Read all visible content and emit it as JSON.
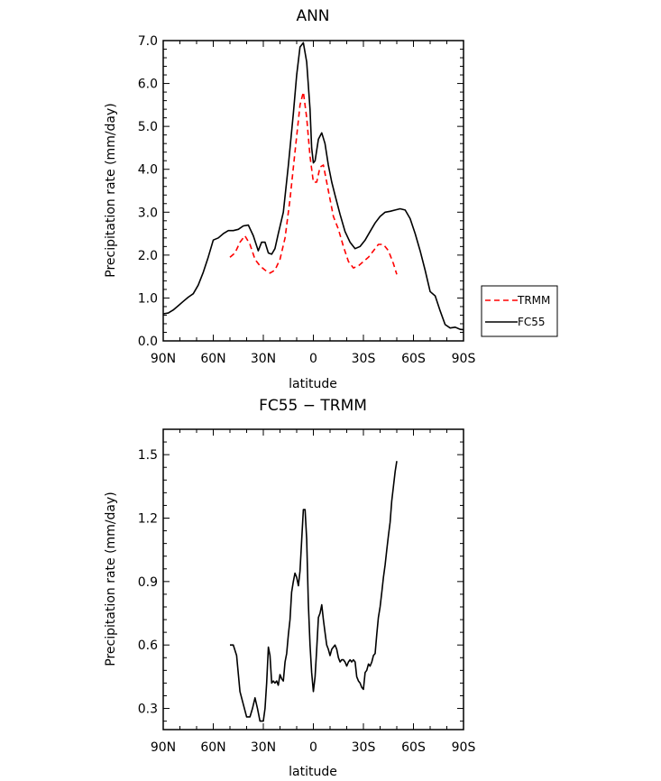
{
  "chart_data": [
    {
      "type": "line",
      "title": "ANN",
      "xlabel": "latitude",
      "ylabel": "Precipitation rate (mm/day)",
      "xlim": [
        90,
        -90
      ],
      "ylim": [
        0,
        7
      ],
      "xticks": [
        90,
        60,
        30,
        0,
        -30,
        -60,
        -90
      ],
      "xtick_labels": [
        "90N",
        "60N",
        "30N",
        "0",
        "30S",
        "60S",
        "90S"
      ],
      "yticks": [
        0,
        1,
        2,
        3,
        4,
        5,
        6,
        7
      ],
      "ytick_labels": [
        "0.0",
        "1.0",
        "2.0",
        "3.0",
        "4.0",
        "5.0",
        "6.0",
        "7.0"
      ],
      "legend": "right",
      "series": [
        {
          "name": "TRMM",
          "color": "#ff0000",
          "style": "dashed",
          "x": [
            50,
            47,
            44,
            41,
            38,
            35,
            32,
            29,
            26,
            23,
            20,
            17,
            14,
            11,
            8,
            6,
            4,
            2,
            0,
            -2,
            -4,
            -6,
            -8,
            -10,
            -12,
            -15,
            -18,
            -21,
            -24,
            -27,
            -30,
            -33,
            -36,
            -39,
            -42,
            -45,
            -48,
            -50
          ],
          "y": [
            1.95,
            2.05,
            2.3,
            2.45,
            2.25,
            1.9,
            1.75,
            1.65,
            1.58,
            1.65,
            1.9,
            2.4,
            3.3,
            4.4,
            5.5,
            5.8,
            5.2,
            4.3,
            3.7,
            3.7,
            4.05,
            4.1,
            3.7,
            3.3,
            2.9,
            2.6,
            2.2,
            1.85,
            1.7,
            1.75,
            1.85,
            1.95,
            2.1,
            2.25,
            2.25,
            2.1,
            1.8,
            1.55
          ]
        },
        {
          "name": "FC55",
          "color": "#000000",
          "style": "solid",
          "x": [
            90,
            87,
            84,
            81,
            78,
            75,
            72,
            69,
            66,
            63,
            60,
            57,
            54,
            51,
            48,
            45,
            42,
            39,
            36,
            33,
            31,
            29,
            27,
            25,
            23,
            21,
            18,
            15,
            12,
            10,
            8,
            6,
            4,
            2,
            1,
            0,
            -1,
            -3,
            -5,
            -7,
            -9,
            -11,
            -13,
            -16,
            -19,
            -22,
            -25,
            -28,
            -31,
            -34,
            -37,
            -40,
            -43,
            -46,
            -49,
            -52,
            -55,
            -58,
            -61,
            -64,
            -67,
            -70,
            -73,
            -76,
            -79,
            -82,
            -85,
            -88,
            -90
          ],
          "y": [
            0.63,
            0.65,
            0.72,
            0.82,
            0.92,
            1.02,
            1.1,
            1.3,
            1.6,
            1.95,
            2.35,
            2.4,
            2.5,
            2.57,
            2.57,
            2.6,
            2.68,
            2.7,
            2.45,
            2.1,
            2.3,
            2.3,
            2.05,
            2.02,
            2.15,
            2.5,
            3.0,
            4.1,
            5.3,
            6.2,
            6.85,
            6.95,
            6.5,
            5.4,
            4.5,
            4.15,
            4.2,
            4.7,
            4.85,
            4.6,
            4.1,
            3.7,
            3.4,
            2.95,
            2.55,
            2.3,
            2.15,
            2.2,
            2.35,
            2.55,
            2.75,
            2.9,
            3.0,
            3.02,
            3.05,
            3.08,
            3.05,
            2.85,
            2.5,
            2.1,
            1.65,
            1.15,
            1.05,
            0.7,
            0.38,
            0.3,
            0.32,
            0.27,
            0.26
          ]
        }
      ]
    },
    {
      "type": "line",
      "title": "FC55 − TRMM",
      "xlabel": "latitude",
      "ylabel": "Precipitation rate (mm/day)",
      "xlim": [
        90,
        -90
      ],
      "ylim": [
        0.2,
        1.62
      ],
      "xticks": [
        90,
        60,
        30,
        0,
        -30,
        -60,
        -90
      ],
      "xtick_labels": [
        "90N",
        "60N",
        "30N",
        "0",
        "30S",
        "60S",
        "90S"
      ],
      "yticks": [
        0.3,
        0.6,
        0.9,
        1.2,
        1.5
      ],
      "ytick_labels": [
        "0.3",
        "0.6",
        "0.9",
        "1.2",
        "1.5"
      ],
      "series": [
        {
          "color": "#000000",
          "style": "solid",
          "x": [
            50,
            48,
            46,
            44,
            42,
            40,
            38,
            36.5,
            35,
            33.5,
            32,
            30,
            29,
            28,
            27,
            26,
            25,
            24,
            23,
            22,
            21,
            20,
            19,
            18,
            17,
            16,
            15,
            14,
            13,
            12,
            11,
            10,
            9,
            8,
            7,
            6,
            5,
            4,
            3,
            2,
            1,
            0,
            -1,
            -2,
            -3,
            -4,
            -5,
            -6,
            -7,
            -8,
            -9,
            -10,
            -11,
            -12,
            -13,
            -14,
            -15,
            -16,
            -17,
            -18,
            -19,
            -20,
            -21,
            -22,
            -23,
            -24,
            -25,
            -26,
            -27,
            -28,
            -29,
            -30,
            -31,
            -32,
            -33,
            -34,
            -35,
            -36,
            -37,
            -38,
            -39,
            -40,
            -41,
            -42,
            -43,
            -44,
            -45,
            -46,
            -47,
            -48,
            -49,
            -50
          ],
          "y": [
            0.6,
            0.6,
            0.55,
            0.38,
            0.32,
            0.26,
            0.26,
            0.3,
            0.35,
            0.3,
            0.24,
            0.24,
            0.3,
            0.42,
            0.59,
            0.55,
            0.42,
            0.43,
            0.42,
            0.43,
            0.41,
            0.46,
            0.44,
            0.43,
            0.52,
            0.56,
            0.65,
            0.72,
            0.85,
            0.9,
            0.94,
            0.92,
            0.88,
            0.95,
            1.1,
            1.24,
            1.24,
            1.1,
            0.8,
            0.6,
            0.47,
            0.38,
            0.45,
            0.58,
            0.73,
            0.75,
            0.79,
            0.72,
            0.66,
            0.6,
            0.58,
            0.55,
            0.58,
            0.59,
            0.6,
            0.58,
            0.54,
            0.52,
            0.53,
            0.53,
            0.52,
            0.5,
            0.52,
            0.53,
            0.52,
            0.53,
            0.52,
            0.45,
            0.43,
            0.42,
            0.4,
            0.39,
            0.47,
            0.48,
            0.51,
            0.5,
            0.52,
            0.55,
            0.56,
            0.65,
            0.73,
            0.78,
            0.85,
            0.92,
            0.98,
            1.05,
            1.12,
            1.18,
            1.28,
            1.35,
            1.42,
            1.47
          ]
        }
      ]
    }
  ]
}
